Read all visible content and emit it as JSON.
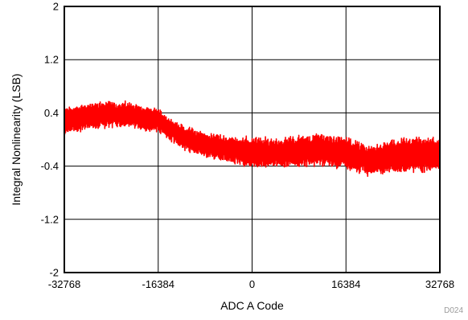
{
  "chart_data": {
    "type": "line",
    "title": "",
    "xlabel": "ADC A Code",
    "ylabel": "Integral Nonlinearity (LSB)",
    "figure_id": "D024",
    "xlim": [
      -32768,
      32768
    ],
    "ylim": [
      -2,
      2
    ],
    "xticks": [
      -32768,
      -16384,
      0,
      16384,
      32768
    ],
    "xtick_labels": [
      "-32768",
      "-16384",
      "0",
      "16384",
      "32768"
    ],
    "yticks": [
      -2,
      -1.2,
      -0.4,
      0.4,
      1.2,
      2
    ],
    "ytick_labels": [
      "-2",
      "-1.2",
      "-0.4",
      "0.4",
      "1.2",
      "2"
    ],
    "grid": true,
    "series": [
      {
        "color": "#ff0000",
        "x": [
          -32768,
          -28672,
          -24576,
          -20480,
          -16384,
          -12288,
          -8192,
          -4096,
          0,
          4096,
          8192,
          12288,
          16384,
          20480,
          24576,
          28672,
          32768
        ],
        "center": [
          0.28,
          0.35,
          0.38,
          0.36,
          0.28,
          0.03,
          -0.08,
          -0.15,
          -0.2,
          -0.2,
          -0.18,
          -0.15,
          -0.2,
          -0.32,
          -0.25,
          -0.22,
          -0.23
        ],
        "upper": [
          0.52,
          0.58,
          0.6,
          0.57,
          0.48,
          0.2,
          0.08,
          0.05,
          0.03,
          0.0,
          0.08,
          0.1,
          0.1,
          -0.1,
          0.05,
          0.1,
          0.05
        ],
        "lower": [
          0.05,
          0.12,
          0.15,
          0.14,
          0.08,
          -0.22,
          -0.35,
          -0.42,
          -0.5,
          -0.5,
          -0.48,
          -0.45,
          -0.48,
          -0.6,
          -0.52,
          -0.5,
          -0.52
        ]
      }
    ]
  }
}
